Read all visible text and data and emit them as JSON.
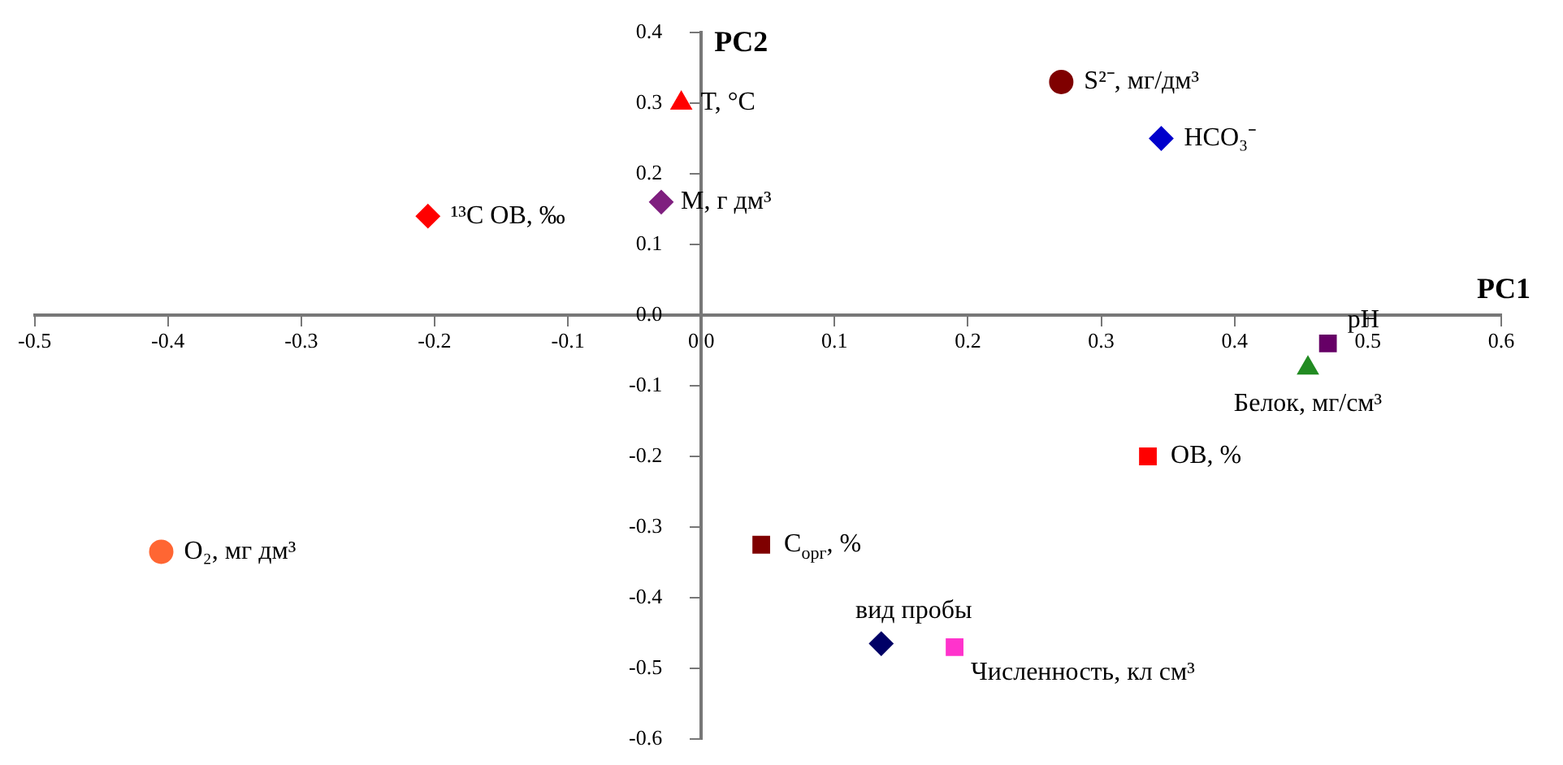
{
  "chart_data": {
    "type": "scatter",
    "xlabel": "PC1",
    "ylabel": "PC2",
    "xlim": [
      -0.5,
      0.6
    ],
    "ylim": [
      -0.6,
      0.4
    ],
    "xticks": [
      -0.5,
      -0.4,
      -0.3,
      -0.2,
      -0.1,
      {
        "value": 0,
        "label": "0.0"
      },
      0.1,
      0.2,
      0.3,
      0.4,
      0.5,
      0.6
    ],
    "yticks": [
      -0.6,
      -0.5,
      -0.4,
      -0.3,
      -0.2,
      -0.1,
      {
        "value": 0,
        "label": "0.0"
      },
      0.1,
      0.2,
      0.3,
      0.4
    ],
    "grid": false,
    "legend": false,
    "series": [
      {
        "name": "T, °C",
        "color": "#ff0000",
        "marker": "triangle",
        "x": [
          -0.015
        ],
        "values": [
          0.3
        ]
      },
      {
        "name": "S²⁻, мг/дм³",
        "color": "#7f0000",
        "marker": "circle",
        "x": [
          0.27
        ],
        "values": [
          0.33
        ]
      },
      {
        "name": "HCO₃⁻",
        "color": "#0000cc",
        "marker": "diamond",
        "x": [
          0.345
        ],
        "values": [
          0.25
        ]
      },
      {
        "name": "¹³C ОВ, ‰",
        "color": "#ff0000",
        "marker": "diamond",
        "x": [
          -0.205
        ],
        "values": [
          0.14
        ]
      },
      {
        "name": "M, г дм³",
        "color": "#7f1f7f",
        "marker": "diamond",
        "x": [
          -0.03
        ],
        "values": [
          0.16
        ]
      },
      {
        "name": "pH",
        "color": "#660066",
        "marker": "square",
        "x": [
          0.47
        ],
        "values": [
          -0.04
        ]
      },
      {
        "name": "Белок, мг/см³",
        "color": "#228b22",
        "marker": "triangle",
        "x": [
          0.455
        ],
        "values": [
          -0.075
        ]
      },
      {
        "name": "ОВ, %",
        "color": "#ff0000",
        "marker": "square",
        "x": [
          0.335
        ],
        "values": [
          -0.2
        ]
      },
      {
        "name": "O₂, мг дм³",
        "color": "#ff6633",
        "marker": "circle",
        "x": [
          -0.405
        ],
        "values": [
          -0.335
        ]
      },
      {
        "name": "C$_{орг}$, %",
        "color": "#7f0000",
        "marker": "square",
        "x": [
          0.045
        ],
        "values": [
          -0.325
        ]
      },
      {
        "name": "вид пробы",
        "color": "#000066",
        "marker": "diamond",
        "x": [
          0.135
        ],
        "values": [
          -0.465
        ]
      },
      {
        "name": "Численность, кл см³",
        "color": "#ff33cc",
        "marker": "square",
        "x": [
          0.19
        ],
        "values": [
          -0.47
        ]
      }
    ]
  }
}
